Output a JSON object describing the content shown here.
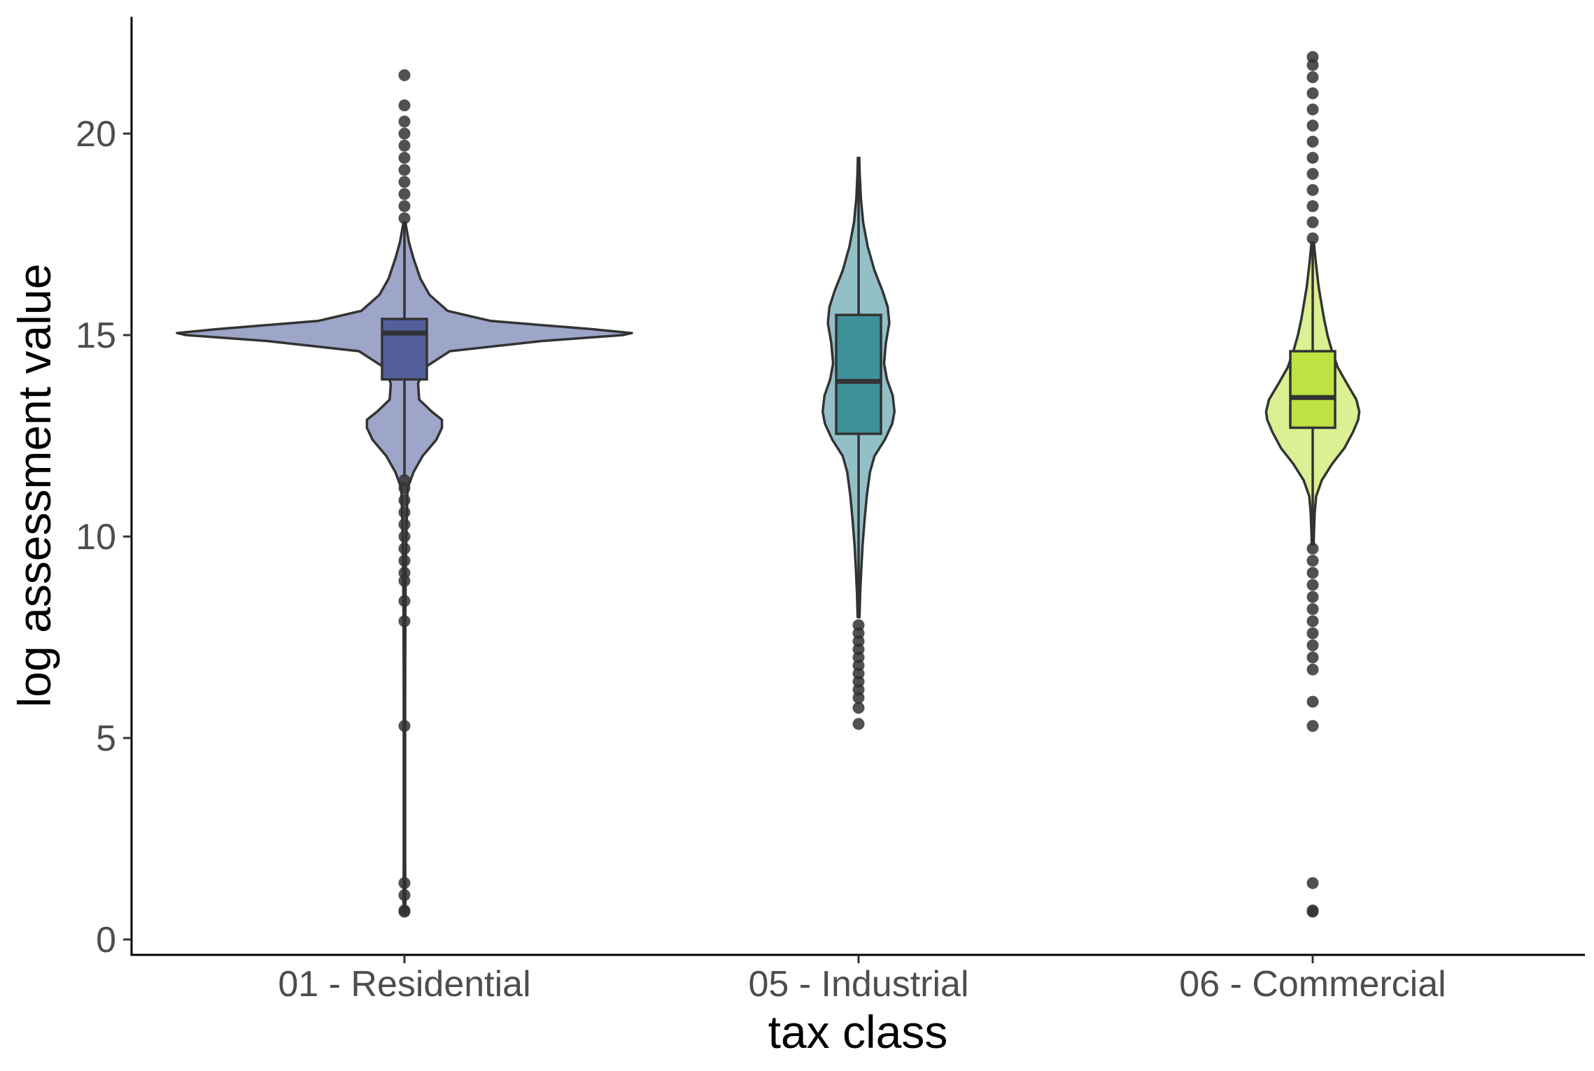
{
  "chart_data": {
    "type": "violin",
    "title": "",
    "xlabel": "tax class",
    "ylabel": "log assessment value",
    "ylim": [
      0,
      22.5
    ],
    "yticks": [
      0,
      5,
      10,
      15,
      20
    ],
    "grid": false,
    "legend": "none",
    "categories": [
      "01 - Residential",
      "05 - Industrial",
      "06 - Commercial"
    ],
    "groups": [
      {
        "category": "01 - Residential",
        "violin_color": "#9da5c8",
        "box_color": "#535f9b",
        "box": {
          "lower_whisker": 11.5,
          "q1": 13.9,
          "median": 15.05,
          "q3": 15.4,
          "upper_whisker": 17.8
        },
        "density": [
          [
            0.69,
            0.004
          ],
          [
            2.0,
            0.003
          ],
          [
            4.0,
            0.003
          ],
          [
            6.0,
            0.003
          ],
          [
            8.0,
            0.004
          ],
          [
            9.5,
            0.006
          ],
          [
            10.5,
            0.01
          ],
          [
            11.2,
            0.014
          ],
          [
            11.6,
            0.04
          ],
          [
            12.0,
            0.08
          ],
          [
            12.4,
            0.14
          ],
          [
            12.7,
            0.165
          ],
          [
            12.9,
            0.165
          ],
          [
            13.1,
            0.12
          ],
          [
            13.4,
            0.065
          ],
          [
            13.8,
            0.06
          ],
          [
            14.2,
            0.09
          ],
          [
            14.6,
            0.2
          ],
          [
            14.85,
            0.6
          ],
          [
            15.0,
            0.96
          ],
          [
            15.05,
            1.0
          ],
          [
            15.15,
            0.82
          ],
          [
            15.35,
            0.38
          ],
          [
            15.6,
            0.19
          ],
          [
            16.0,
            0.11
          ],
          [
            16.4,
            0.07
          ],
          [
            16.9,
            0.04
          ],
          [
            17.3,
            0.02
          ],
          [
            17.8,
            0.004
          ]
        ],
        "outliers": [
          0.69,
          0.72,
          1.1,
          1.4,
          5.3,
          7.9,
          8.4,
          8.9,
          9.1,
          9.4,
          9.7,
          10.0,
          10.3,
          10.6,
          10.9,
          11.2,
          11.4,
          17.9,
          18.2,
          18.5,
          18.8,
          19.1,
          19.4,
          19.7,
          20.0,
          20.3,
          20.7,
          21.45
        ]
      },
      {
        "category": "05 - Industrial",
        "violin_color": "#93c0c7",
        "box_color": "#3e9099",
        "box": {
          "lower_whisker": 8.0,
          "q1": 12.55,
          "median": 13.85,
          "q3": 15.5,
          "upper_whisker": 19.4
        },
        "density": [
          [
            8.0,
            0.004
          ],
          [
            8.6,
            0.007
          ],
          [
            9.2,
            0.012
          ],
          [
            9.8,
            0.018
          ],
          [
            10.4,
            0.026
          ],
          [
            11.0,
            0.036
          ],
          [
            11.6,
            0.05
          ],
          [
            12.0,
            0.07
          ],
          [
            12.4,
            0.115
          ],
          [
            12.8,
            0.148
          ],
          [
            13.1,
            0.158
          ],
          [
            13.5,
            0.15
          ],
          [
            13.9,
            0.125
          ],
          [
            14.3,
            0.112
          ],
          [
            14.8,
            0.12
          ],
          [
            15.3,
            0.135
          ],
          [
            15.7,
            0.128
          ],
          [
            16.1,
            0.105
          ],
          [
            16.6,
            0.07
          ],
          [
            17.2,
            0.04
          ],
          [
            17.8,
            0.02
          ],
          [
            18.4,
            0.01
          ],
          [
            19.0,
            0.005
          ],
          [
            19.4,
            0.003
          ]
        ],
        "outliers": [
          5.35,
          5.75,
          6.0,
          6.2,
          6.4,
          6.6,
          6.8,
          7.0,
          7.2,
          7.4,
          7.6,
          7.8
        ]
      },
      {
        "category": "06 - Commercial",
        "violin_color": "#dbef93",
        "box_color": "#bde241",
        "box": {
          "lower_whisker": 9.8,
          "q1": 12.7,
          "median": 13.45,
          "q3": 14.6,
          "upper_whisker": 17.3
        },
        "density": [
          [
            9.8,
            0.004
          ],
          [
            10.2,
            0.006
          ],
          [
            10.6,
            0.009
          ],
          [
            11.0,
            0.015
          ],
          [
            11.4,
            0.04
          ],
          [
            11.8,
            0.085
          ],
          [
            12.2,
            0.14
          ],
          [
            12.6,
            0.178
          ],
          [
            12.9,
            0.2
          ],
          [
            13.1,
            0.205
          ],
          [
            13.4,
            0.192
          ],
          [
            13.8,
            0.15
          ],
          [
            14.2,
            0.11
          ],
          [
            14.6,
            0.085
          ],
          [
            15.0,
            0.065
          ],
          [
            15.4,
            0.05
          ],
          [
            15.8,
            0.038
          ],
          [
            16.2,
            0.026
          ],
          [
            16.8,
            0.014
          ],
          [
            17.3,
            0.005
          ]
        ],
        "outliers": [
          0.69,
          0.72,
          1.4,
          5.3,
          5.9,
          6.7,
          7.0,
          7.3,
          7.6,
          7.9,
          8.2,
          8.5,
          8.8,
          9.1,
          9.4,
          9.7,
          17.4,
          17.8,
          18.2,
          18.6,
          19.0,
          19.4,
          19.8,
          20.2,
          20.6,
          21.0,
          21.4,
          21.7,
          21.9
        ]
      }
    ]
  }
}
